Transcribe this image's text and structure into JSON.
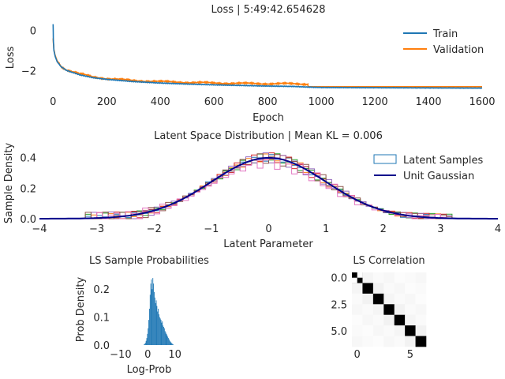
{
  "chart_data": [
    {
      "type": "line",
      "title": "Loss | 5:49:42.654628",
      "xlabel": "Epoch",
      "ylabel": "Loss",
      "xlim": [
        -45,
        1650
      ],
      "ylim": [
        -3.1,
        0.4
      ],
      "xticks": [
        "0",
        "200",
        "400",
        "600",
        "800",
        "1000",
        "1200",
        "1400",
        "1600"
      ],
      "yticks": [
        "0",
        "−2"
      ],
      "legend": "upper-right",
      "grid": false,
      "series": [
        {
          "name": "Train",
          "color": "#1f77b4",
          "x": [
            0,
            1,
            3,
            8,
            15,
            30,
            50,
            100,
            150,
            200,
            300,
            400,
            500,
            600,
            700,
            800,
            900,
            950,
            1000,
            1200,
            1400,
            1600
          ],
          "y": [
            0.3,
            -0.5,
            -1.0,
            -1.3,
            -1.55,
            -1.8,
            -1.98,
            -2.2,
            -2.34,
            -2.42,
            -2.53,
            -2.6,
            -2.65,
            -2.69,
            -2.72,
            -2.75,
            -2.77,
            -2.8,
            -2.82,
            -2.83,
            -2.84,
            -2.85
          ]
        },
        {
          "name": "Validation",
          "color": "#ff7f0e",
          "x": [
            0,
            1,
            3,
            8,
            15,
            30,
            50,
            100,
            150,
            200,
            300,
            400,
            500,
            600,
            700,
            800,
            900,
            950,
            951,
            1000,
            1200,
            1400,
            1600
          ],
          "y": [
            -0.4,
            -0.6,
            -0.95,
            -1.25,
            -1.5,
            -1.78,
            -1.95,
            -2.15,
            -2.3,
            -2.38,
            -2.48,
            -2.53,
            -2.57,
            -2.6,
            -2.62,
            -2.63,
            -2.64,
            -2.65,
            -2.78,
            -2.78,
            -2.78,
            -2.78,
            -2.78
          ]
        }
      ]
    },
    {
      "type": "line",
      "title": "Latent Space Distribution | Mean KL = 0.006",
      "xlabel": "Latent Parameter",
      "ylabel": "Sample Density",
      "xlim": [
        -4,
        4
      ],
      "ylim": [
        0,
        0.45
      ],
      "xticks": [
        "−4",
        "−3",
        "−2",
        "−1",
        "0",
        "1",
        "2",
        "3",
        "4"
      ],
      "yticks": [
        "0.0",
        "0.2",
        "0.4"
      ],
      "legend": "upper-right",
      "grid": false,
      "series": [
        {
          "name": "Latent Samples",
          "color": "#1f77b4",
          "kind": "step-histogram"
        },
        {
          "name": "Unit Gaussian",
          "color": "#00008b",
          "kind": "pdf",
          "mean": 0,
          "std": 1
        }
      ],
      "histogram_colors": [
        "#1f77b4",
        "#ff7f0e",
        "#2ca02c",
        "#d62728",
        "#9467bd",
        "#8c564b",
        "#e377c2"
      ]
    },
    {
      "type": "bar",
      "title": "LS Sample Probabilities",
      "xlabel": "Log-Prob",
      "ylabel": "Prob Density",
      "xlim": [
        -12,
        13
      ],
      "ylim": [
        0,
        0.26
      ],
      "xticks": [
        "−10",
        "0",
        "10"
      ],
      "yticks": [
        "0.0",
        "0.1",
        "0.2"
      ],
      "color": "#1f77b4",
      "bins": {
        "start": -1.5,
        "width": 0.25
      },
      "values": [
        0.002,
        0.004,
        0.008,
        0.015,
        0.025,
        0.04,
        0.06,
        0.09,
        0.13,
        0.18,
        0.22,
        0.235,
        0.2,
        0.24,
        0.22,
        0.19,
        0.17,
        0.15,
        0.16,
        0.14,
        0.12,
        0.13,
        0.11,
        0.1,
        0.095,
        0.09,
        0.08,
        0.085,
        0.07,
        0.065,
        0.06,
        0.05,
        0.045,
        0.04,
        0.035,
        0.03,
        0.025,
        0.02,
        0.015,
        0.012,
        0.009,
        0.006,
        0.004,
        0.002
      ]
    },
    {
      "type": "heatmap",
      "title": "LS Correlation",
      "xticks": [
        "0",
        "5"
      ],
      "yticks": [
        "0.0",
        "2.5",
        "5.0"
      ],
      "size": 7,
      "matrix": [
        [
          1,
          0.04,
          0.02,
          0.03,
          0.01,
          0.02,
          0.03
        ],
        [
          0.04,
          1,
          0.05,
          0.02,
          0.03,
          0.01,
          0.02
        ],
        [
          0.02,
          0.05,
          1,
          0.04,
          0.02,
          0.03,
          0.01
        ],
        [
          0.03,
          0.02,
          0.04,
          1,
          0.05,
          0.02,
          0.03
        ],
        [
          0.01,
          0.03,
          0.02,
          0.05,
          1,
          0.04,
          0.02
        ],
        [
          0.02,
          0.01,
          0.03,
          0.02,
          0.04,
          1,
          0.05
        ],
        [
          0.03,
          0.02,
          0.01,
          0.03,
          0.02,
          0.05,
          1
        ]
      ]
    }
  ]
}
